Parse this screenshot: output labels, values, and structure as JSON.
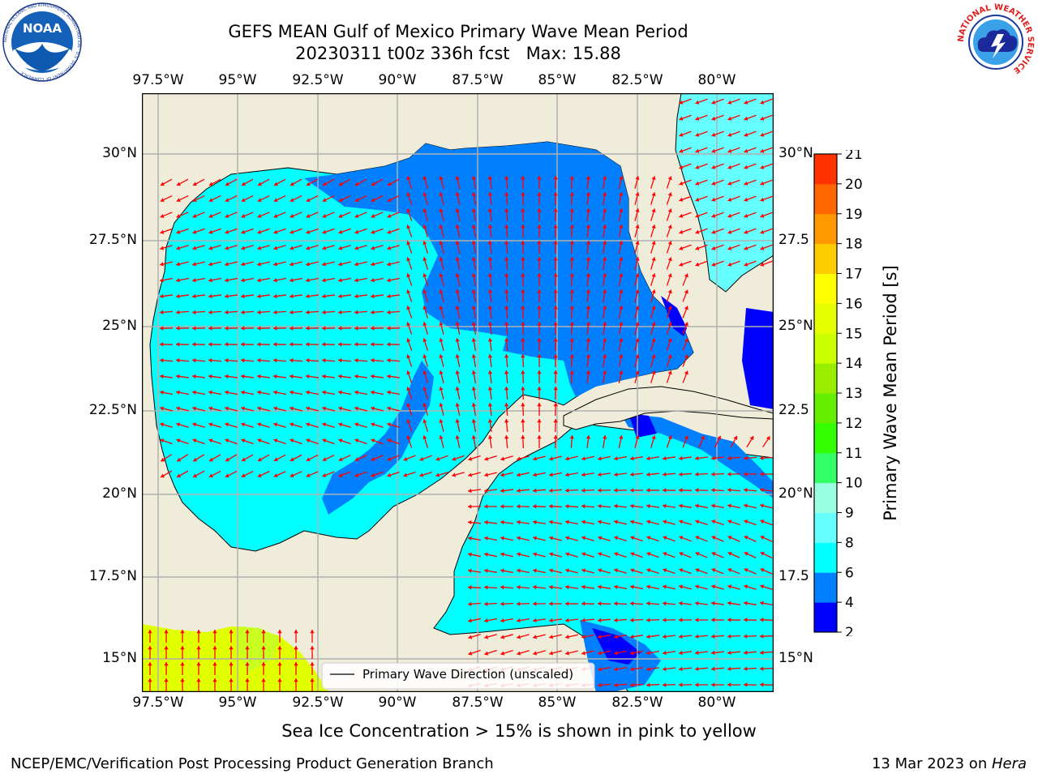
{
  "header": {
    "title_line1": "GEFS MEAN Gulf of Mexico Primary Wave Mean Period",
    "title_line2": "20230311 t00z 336h fcst   Max: 15.88"
  },
  "logos": {
    "noaa_text": "NOAA",
    "noaa_ring": "NATIONAL OCEANIC AND ATMOSPHERIC ADMINISTRATION · U.S. DEPARTMENT OF COMMERCE",
    "nws_ring": "NATIONAL WEATHER SERVICE"
  },
  "map": {
    "lon_labels": [
      "97.5°W",
      "95°W",
      "92.5°W",
      "90°W",
      "87.5°W",
      "85°W",
      "82.5°W",
      "80°W"
    ],
    "lat_labels": [
      "30°N",
      "27.5°N",
      "25°N",
      "22.5°N",
      "20°N",
      "17.5°N",
      "15°N"
    ],
    "lat_labels_right": [
      "30°N",
      "27.5",
      "25°N",
      "22.5",
      "20°N",
      "17.5",
      "15°N"
    ],
    "legend_label": "Primary Wave Direction (unscaled)",
    "colors": {
      "land": "#efecda",
      "water_cyan": "#00ffff",
      "water_blue": "#0080ff",
      "water_navy": "#0000ff",
      "water_light": "#66ffff",
      "ice_yellow": "#e0ff00",
      "arrow": "#ff0000",
      "grid": "#b0b0b0"
    }
  },
  "colorbar": {
    "label": "Primary Wave Mean Period [s]",
    "ticks": [
      "2",
      "4",
      "6",
      "8",
      "9",
      "10",
      "11",
      "12",
      "13",
      "14",
      "15",
      "16",
      "17",
      "18",
      "19",
      "20",
      "21"
    ],
    "colors": [
      "#0000ff",
      "#0080ff",
      "#00ffff",
      "#66ffff",
      "#99ffe0",
      "#33ff66",
      "#33ff00",
      "#66ee00",
      "#99ee00",
      "#ccff00",
      "#e6ff00",
      "#ffff00",
      "#ffcc00",
      "#ff9900",
      "#ff6600",
      "#ff3300",
      "#ff0000"
    ]
  },
  "footer": {
    "subtitle": "Sea Ice Concentration > 15% is shown in pink to yellow",
    "left": "NCEP/EMC/Verification Post Processing Product Generation Branch",
    "right_prefix": "13 Mar 2023 on ",
    "right_host": "Hera"
  }
}
